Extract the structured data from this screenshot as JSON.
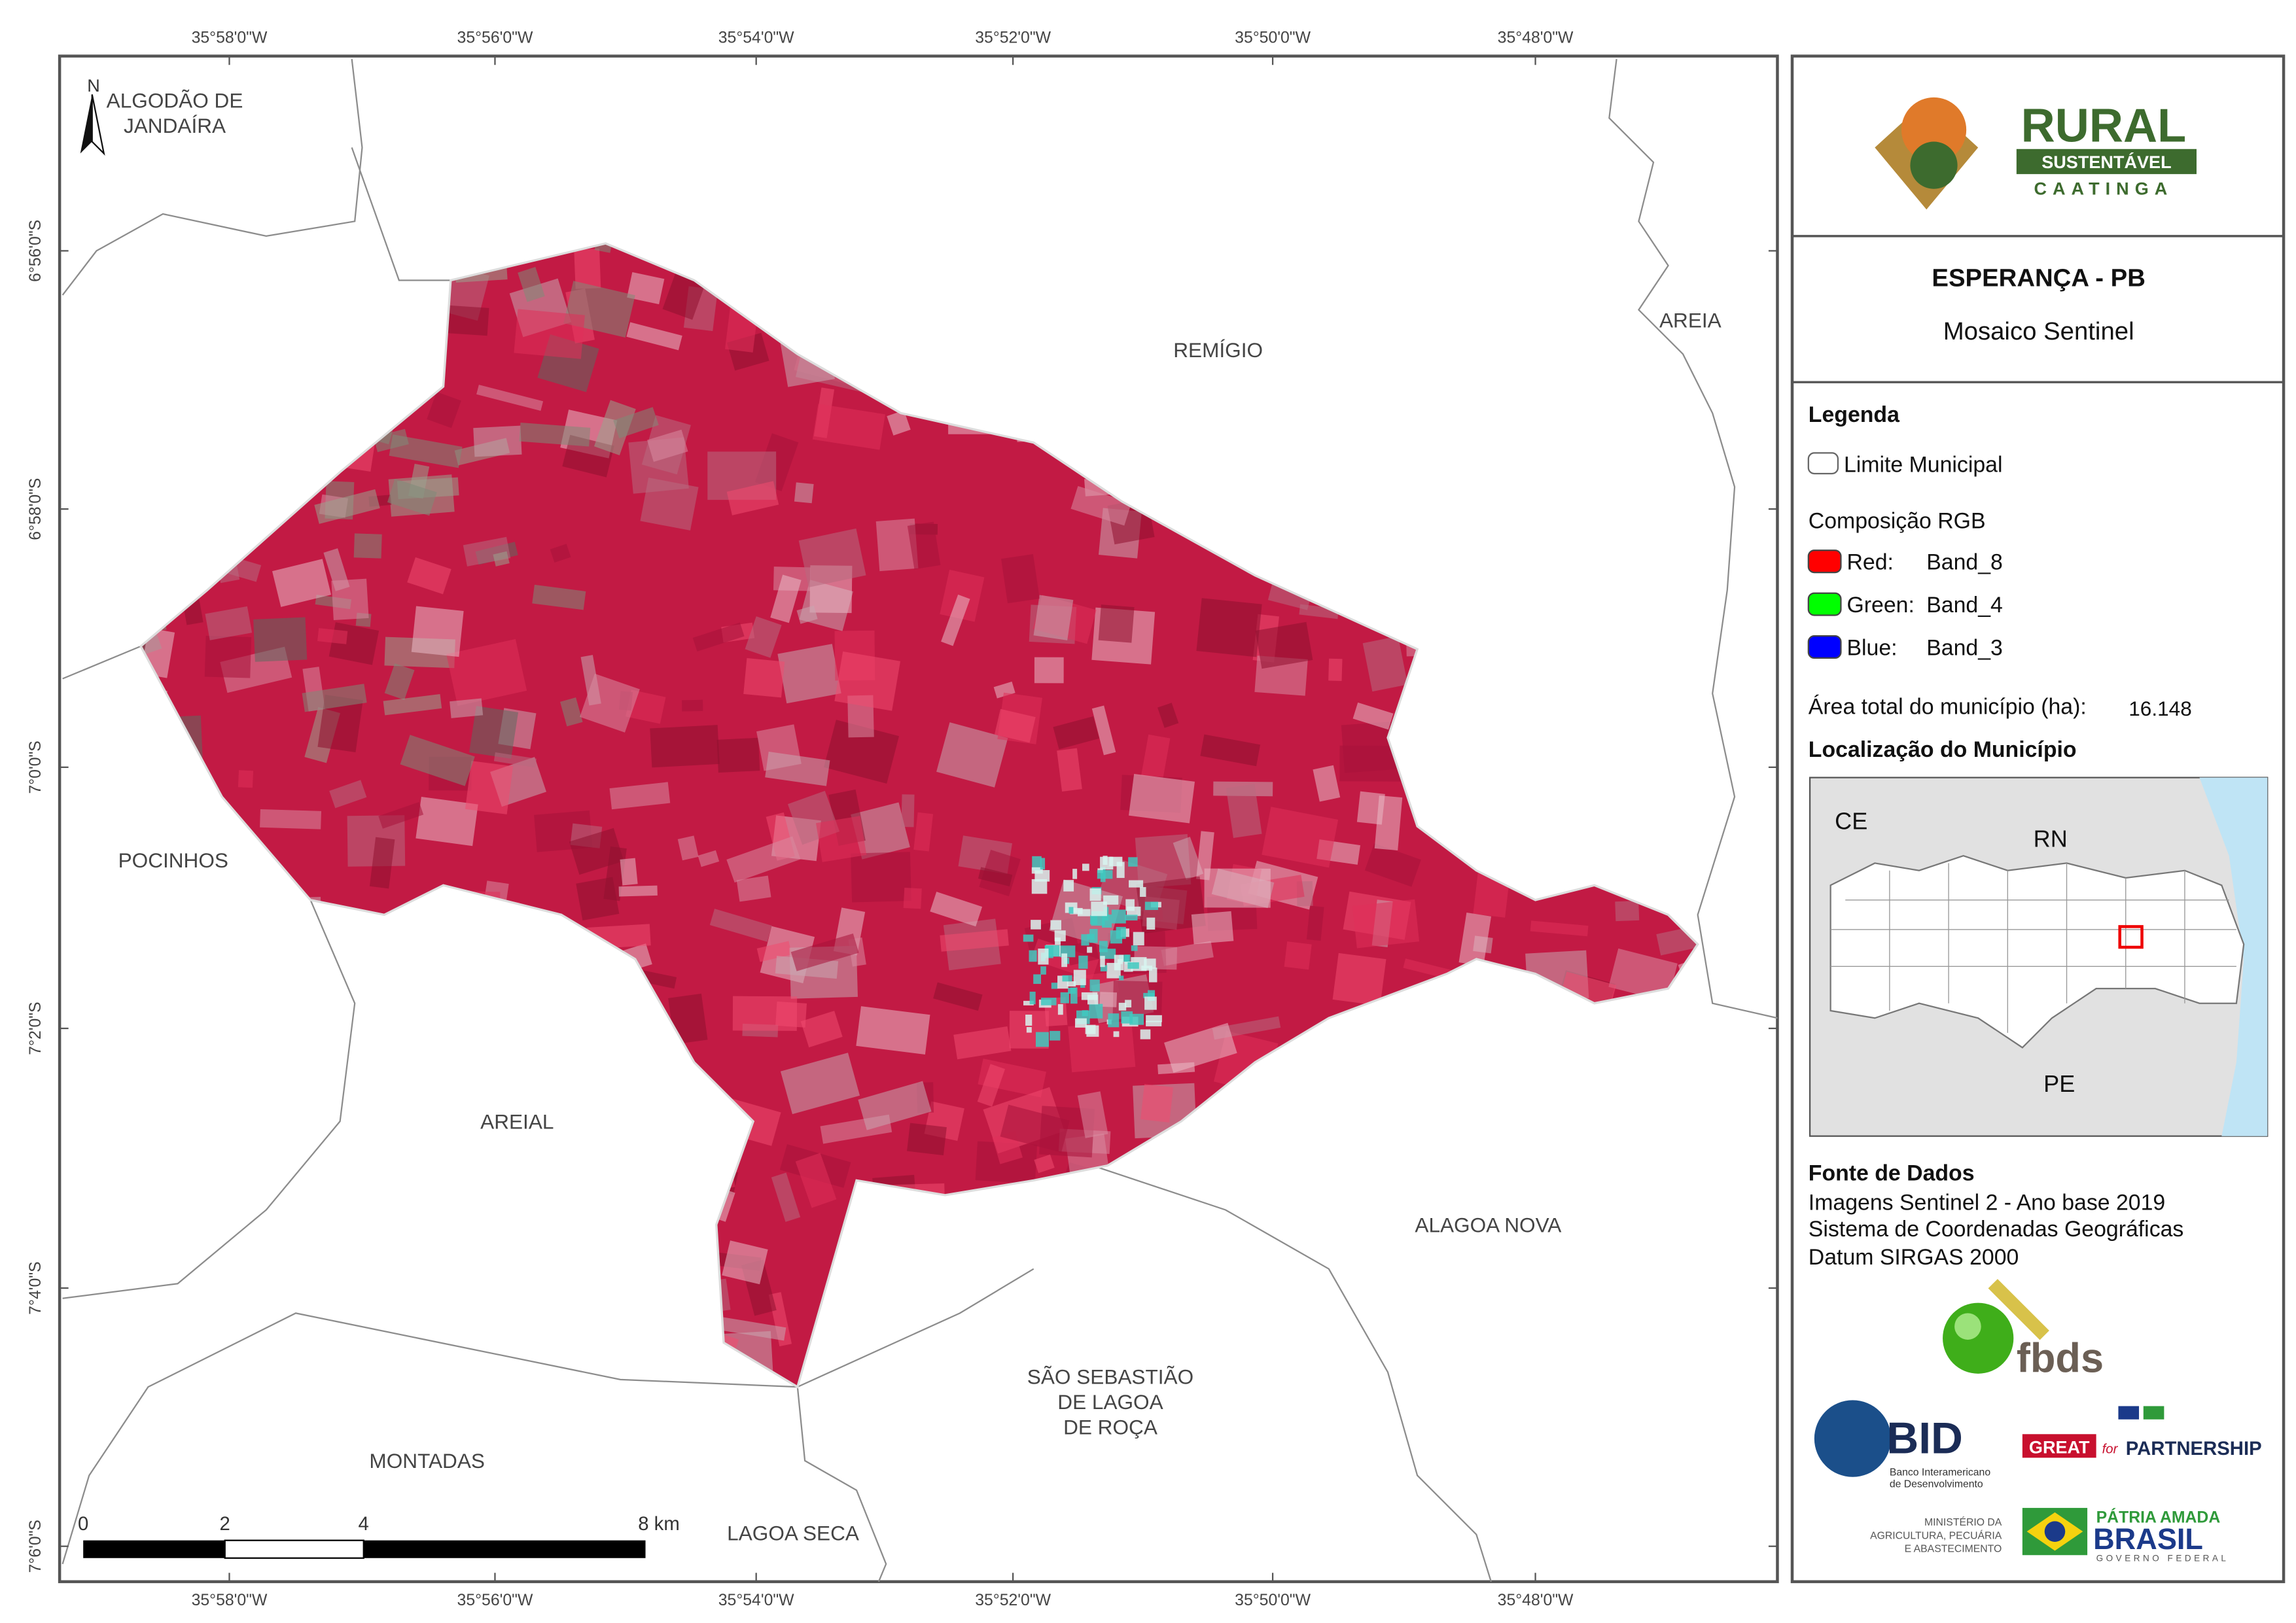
{
  "map": {
    "lon_labels": [
      "35°58'0\"W",
      "35°56'0\"W",
      "35°54'0\"W",
      "35°52'0\"W",
      "35°50'0\"W",
      "35°48'0\"W"
    ],
    "lat_labels": [
      "6°56'0\"S",
      "6°58'0\"S",
      "7°0'0\"S",
      "7°2'0\"S",
      "7°4'0\"S",
      "7°6'0\"S"
    ],
    "north": "N",
    "places": {
      "algodao": [
        "ALGODÃO DE",
        "JANDAÍRA"
      ],
      "remigio": "REMÍGIO",
      "areia": "AREIA",
      "pocinhos": "POCINHOS",
      "areial": "AREIAL",
      "alagoa_nova": "ALAGOA NOVA",
      "sao_sebastiao": [
        "SÃO SEBASTIÃO",
        "DE LAGOA",
        "DE ROÇA"
      ],
      "montadas": "MONTADAS",
      "lagoa_seca": "LAGOA SECA"
    },
    "scale": [
      "0",
      "2",
      "4",
      "8 km"
    ]
  },
  "panel": {
    "logo": {
      "title": "RURAL",
      "band": "SUSTENTÁVEL",
      "sub": "CAATINGA"
    },
    "title": "ESPERANÇA - PB",
    "subtitle": "Mosaico Sentinel",
    "legend": {
      "heading": "Legenda",
      "boundary": "Limite Municipal",
      "rgb": "Composição RGB",
      "bands": [
        {
          "channel": "Red:",
          "band": "Band_8"
        },
        {
          "channel": "Green:",
          "band": "Band_4"
        },
        {
          "channel": "Blue:",
          "band": "Band_3"
        }
      ],
      "area_label": "Área total do município (ha):",
      "area_value": "16.148"
    },
    "location": {
      "heading": "Localização do Município",
      "labels": [
        "CE",
        "RN",
        "PE"
      ]
    },
    "sources": {
      "heading": "Fonte de Dados",
      "lines": [
        "Imagens Sentinel 2 - Ano base 2019",
        "Sistema de Coordenadas Geográficas",
        "Datum SIRGAS 2000"
      ]
    },
    "logos": {
      "fbds": "fbds",
      "bid": "BID",
      "bid_sub": [
        "Banco Interamericano",
        "de Desenvolvimento"
      ],
      "great": "GREAT",
      "great_for": "for",
      "partnership": "PARTNERSHIP",
      "ministerio": [
        "MINISTÉRIO DA",
        "AGRICULTURA, PECUÁRIA",
        "E ABASTECIMENTO"
      ],
      "patria": "PÁTRIA AMADA",
      "brasil": "BRASIL",
      "governo": "GOVERNO FEDERAL"
    }
  }
}
